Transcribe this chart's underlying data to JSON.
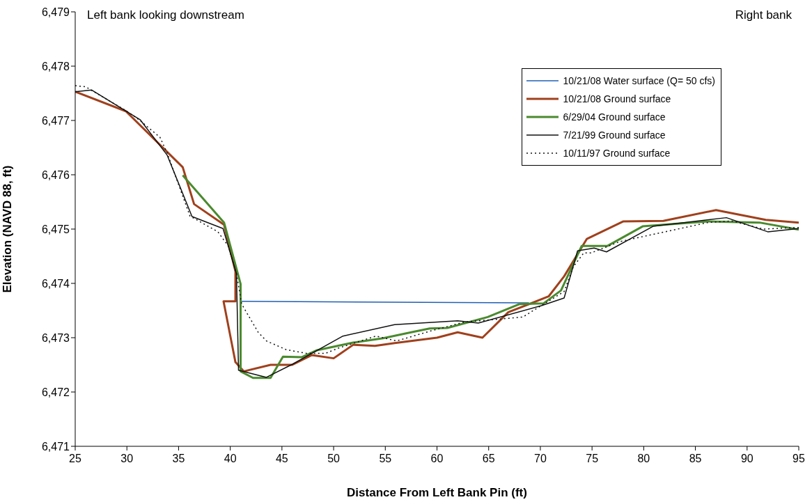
{
  "chart_data": {
    "type": "line",
    "xlabel": "Distance From Left Bank Pin (ft)",
    "ylabel": "Elevation (NAVD 88, ft)",
    "annotations": [
      "Left bank looking downstream",
      "Right bank"
    ],
    "xlim": [
      25,
      95
    ],
    "xticks": [
      25,
      30,
      35,
      40,
      45,
      50,
      55,
      60,
      65,
      70,
      75,
      80,
      85,
      90,
      95
    ],
    "ylim": [
      6471,
      6479
    ],
    "yticks": [
      {
        "value": 6471,
        "label": "6,471"
      },
      {
        "value": 6472,
        "label": "6,472"
      },
      {
        "value": 6473,
        "label": "6,473"
      },
      {
        "value": 6474,
        "label": "6,474"
      },
      {
        "value": 6475,
        "label": "6,475"
      },
      {
        "value": 6476,
        "label": "6,476"
      },
      {
        "value": 6477,
        "label": "6,477"
      },
      {
        "value": 6478,
        "label": "6,478"
      },
      {
        "value": 6479,
        "label": "6,479"
      }
    ],
    "grid": false,
    "legend": "top right",
    "marker": "none",
    "series": [
      {
        "name": "10/21/08 Water surface (Q= 50 cfs)",
        "color": "#1f5fb4",
        "line_style": "solid",
        "x": [
          41.1,
          68.9
        ],
        "values": [
          6473.67,
          6473.64
        ]
      },
      {
        "name": "10/21/08 Ground surface",
        "color": "#a0401c",
        "line_style": "solid",
        "x": [
          25,
          29.9,
          35.4,
          36.5,
          39.4,
          40.5,
          40.5,
          39.35,
          40.5,
          41.3,
          43.9,
          46.0,
          47.9,
          50.0,
          51.9,
          54.0,
          55.9,
          60.0,
          62.0,
          64.4,
          66.9,
          70.8,
          72.3,
          74.5,
          78.0,
          81.9,
          87.0,
          91.8,
          95
        ],
        "values": [
          6477.53,
          6477.17,
          6476.14,
          6475.46,
          6475.08,
          6474.22,
          6473.67,
          6473.67,
          6472.55,
          6472.38,
          6472.5,
          6472.5,
          6472.68,
          6472.62,
          6472.87,
          6472.85,
          6472.9,
          6473.0,
          6473.1,
          6473.0,
          6473.47,
          6473.76,
          6474.13,
          6474.82,
          6475.14,
          6475.15,
          6475.35,
          6475.17,
          6475.12
        ]
      },
      {
        "name": "6/29/04 Ground surface",
        "color": "#4a8a2e",
        "line_style": "solid",
        "x": [
          35.4,
          39.4,
          41.0,
          41.0,
          42.2,
          43.9,
          45.1,
          46.9,
          48.4,
          51.9,
          54.8,
          57.5,
          59.3,
          61.0,
          64.9,
          68.0,
          70.3,
          72.0,
          74.0,
          76.5,
          79.9,
          86.2,
          91.2,
          95
        ],
        "values": [
          6475.99,
          6475.12,
          6473.99,
          6472.38,
          6472.26,
          6472.26,
          6472.65,
          6472.64,
          6472.77,
          6472.91,
          6472.99,
          6473.1,
          6473.17,
          6473.18,
          6473.38,
          6473.62,
          6473.63,
          6473.87,
          6474.69,
          6474.69,
          6475.05,
          6475.14,
          6475.12,
          6474.99
        ]
      },
      {
        "name": "7/21/99 Ground surface",
        "color": "#111111",
        "line_style": "solid",
        "x": [
          25,
          26.6,
          31.3,
          33.9,
          36.3,
          39.3,
          40.6,
          40.8,
          43.5,
          46.0,
          50.9,
          55.9,
          62.0,
          64.0,
          70.1,
          72.3,
          73.6,
          75.2,
          76.4,
          80.9,
          88.0,
          92.0,
          95
        ],
        "values": [
          6477.53,
          6477.56,
          6477.01,
          6476.36,
          6475.23,
          6475.01,
          6474.18,
          6472.4,
          6472.27,
          6472.51,
          6473.03,
          6473.24,
          6473.31,
          6473.27,
          6473.59,
          6473.73,
          6474.6,
          6474.65,
          6474.58,
          6475.05,
          6475.21,
          6474.95,
          6475.01
        ]
      },
      {
        "name": "10/11/97 Ground surface",
        "color": "#111111",
        "line_style": "dotted",
        "x": [
          25,
          26.0,
          30.0,
          31.2,
          33.2,
          33.9,
          36.1,
          38.8,
          39.8,
          40.6,
          41.1,
          42.7,
          43.5,
          45.4,
          47.4,
          49.2,
          50.5,
          54.1,
          56.1,
          59.5,
          62.7,
          68.3,
          72.3,
          73.2,
          74.2,
          74.9,
          77.7,
          86.2,
          88.5,
          91.6,
          95
        ],
        "values": [
          6477.64,
          6477.62,
          6477.17,
          6477.01,
          6476.69,
          6476.4,
          6475.24,
          6474.95,
          6474.69,
          6474.18,
          6473.62,
          6473.1,
          6472.94,
          6472.78,
          6472.71,
          6472.71,
          6472.81,
          6473.03,
          6472.94,
          6473.13,
          6473.29,
          6473.38,
          6473.85,
          6474.31,
          6474.56,
          6474.56,
          6474.77,
          6475.12,
          6475.15,
          6475.0,
          6475.03
        ]
      }
    ]
  }
}
